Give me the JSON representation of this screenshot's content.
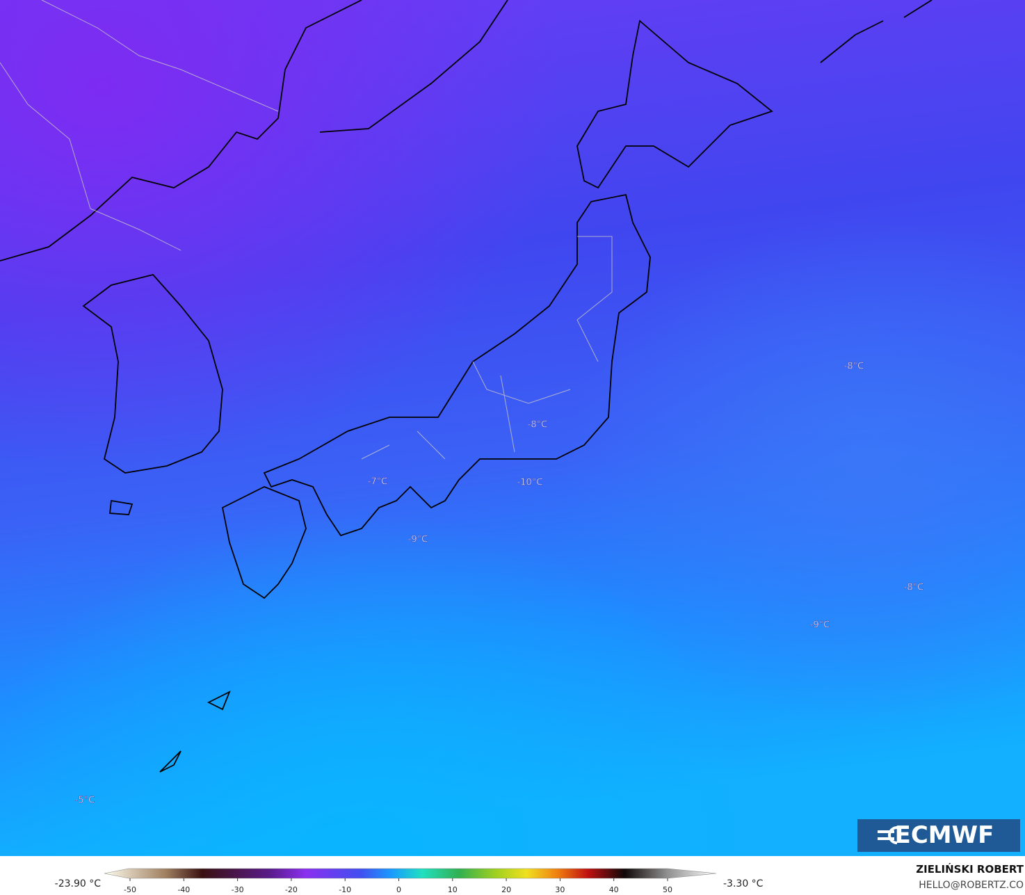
{
  "map": {
    "labels": [
      {
        "text": "-8°C"
      },
      {
        "text": "-8°C"
      },
      {
        "text": "-7°C"
      },
      {
        "text": "-10°C"
      },
      {
        "text": "-9°C"
      },
      {
        "text": "-8°C"
      },
      {
        "text": "-9°C"
      },
      {
        "text": "-5°C"
      }
    ],
    "logo": "ECMWF"
  },
  "legend": {
    "min": "-23.90 °C",
    "max": "-3.30 °C",
    "ticks": [
      -50,
      -40,
      -30,
      -20,
      -10,
      0,
      10,
      20,
      30,
      40,
      50
    ]
  },
  "credit": {
    "name": "ZIELIŃSKI ROBERT",
    "email": "HELLO@ROBERTZ.CO"
  }
}
